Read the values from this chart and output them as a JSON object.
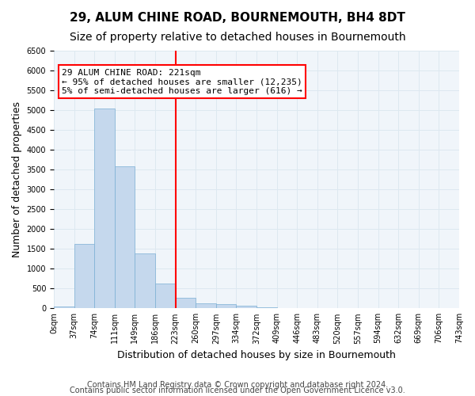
{
  "title": "29, ALUM CHINE ROAD, BOURNEMOUTH, BH4 8DT",
  "subtitle": "Size of property relative to detached houses in Bournemouth",
  "xlabel": "Distribution of detached houses by size in Bournemouth",
  "ylabel": "Number of detached properties",
  "footnote1": "Contains HM Land Registry data © Crown copyright and database right 2024.",
  "footnote2": "Contains public sector information licensed under the Open Government Licence v3.0.",
  "bin_labels": [
    "0sqm",
    "37sqm",
    "74sqm",
    "111sqm",
    "149sqm",
    "186sqm",
    "223sqm",
    "260sqm",
    "297sqm",
    "334sqm",
    "372sqm",
    "409sqm",
    "446sqm",
    "483sqm",
    "520sqm",
    "557sqm",
    "594sqm",
    "632sqm",
    "669sqm",
    "706sqm",
    "743sqm"
  ],
  "bar_values": [
    50,
    1620,
    5050,
    3580,
    1380,
    620,
    270,
    120,
    100,
    70,
    30,
    10,
    5,
    2,
    1,
    1,
    0,
    0,
    0,
    0
  ],
  "bar_color": "#c5d8ed",
  "bar_edge_color": "#7bafd4",
  "property_line_bin": 6,
  "annotation_text": "29 ALUM CHINE ROAD: 221sqm\n← 95% of detached houses are smaller (12,235)\n5% of semi-detached houses are larger (616) →",
  "annotation_box_color": "white",
  "annotation_box_edge_color": "red",
  "vline_color": "red",
  "ylim": [
    0,
    6500
  ],
  "yticks": [
    0,
    500,
    1000,
    1500,
    2000,
    2500,
    3000,
    3500,
    4000,
    4500,
    5000,
    5500,
    6000,
    6500
  ],
  "title_fontsize": 11,
  "subtitle_fontsize": 10,
  "xlabel_fontsize": 9,
  "ylabel_fontsize": 9,
  "tick_fontsize": 7,
  "annot_fontsize": 8,
  "footnote_fontsize": 7,
  "grid_color": "#dde8f0",
  "bg_color": "#f0f5fa"
}
